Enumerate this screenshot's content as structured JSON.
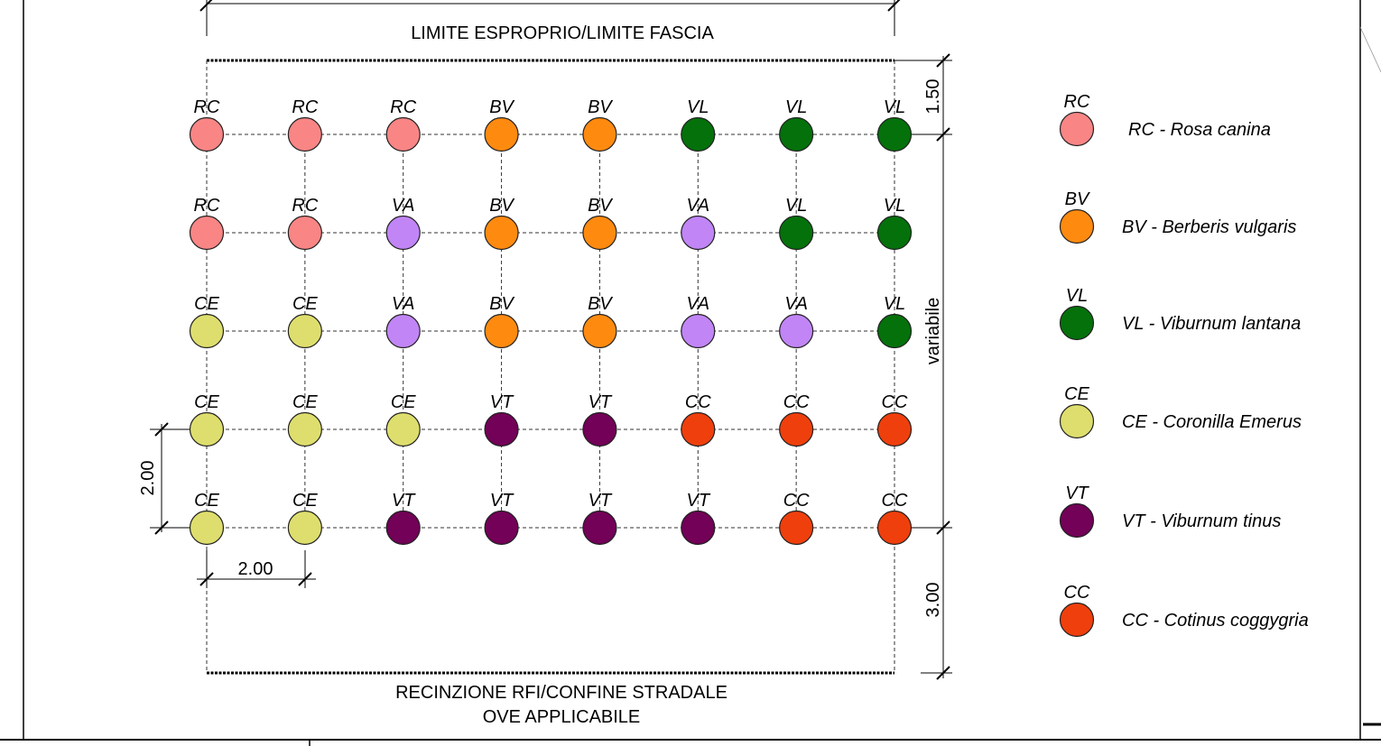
{
  "labels": {
    "top_boundary": "LIMITE ESPROPRIO/LIMITE FASCIA",
    "bottom_boundary_line1": "RECINZIONE RFI/CONFINE STRADALE",
    "bottom_boundary_line2": "OVE APPLICABILE"
  },
  "dimensions": {
    "top_offset": "1.50",
    "variable": "variabile",
    "bottom_offset": "3.00",
    "row_spacing": "2.00",
    "col_spacing": "2.00"
  },
  "species_colors": {
    "RC": "#f98585",
    "BV": "#ff8a10",
    "VL": "#04710b",
    "VA": "#c185f6",
    "CE": "#dede6e",
    "VT": "#720157",
    "CC": "#ef3f0c"
  },
  "planting_grid": [
    [
      "RC",
      "RC",
      "RC",
      "BV",
      "BV",
      "VL",
      "VL",
      "VL"
    ],
    [
      "RC",
      "RC",
      "VA",
      "BV",
      "BV",
      "VA",
      "VL",
      "VL"
    ],
    [
      "CE",
      "CE",
      "VA",
      "BV",
      "BV",
      "VA",
      "VA",
      "VL"
    ],
    [
      "CE",
      "CE",
      "CE",
      "VT",
      "VT",
      "CC",
      "CC",
      "CC"
    ],
    [
      "CE",
      "CE",
      "VT",
      "VT",
      "VT",
      "VT",
      "CC",
      "CC"
    ]
  ],
  "legend": [
    {
      "code": "RC",
      "text": "RC - Rosa canina"
    },
    {
      "code": "BV",
      "text": "BV - Berberis vulgaris"
    },
    {
      "code": "VL",
      "text": "VL - Viburnum lantana"
    },
    {
      "code": "CE",
      "text": "CE - Coronilla Emerus"
    },
    {
      "code": "VT",
      "text": "VT - Viburnum tinus"
    },
    {
      "code": "CC",
      "text": "CC - Cotinus coggygria"
    }
  ]
}
